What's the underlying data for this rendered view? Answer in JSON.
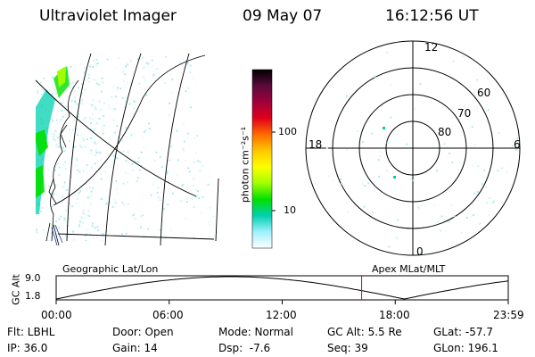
{
  "header": {
    "instrument": "Ultraviolet Imager",
    "date": "09 May 07",
    "time": "16:12:56 UT"
  },
  "colorbar": {
    "unit_label": "photon cm⁻²s⁻¹",
    "ticks": [
      "100",
      "10"
    ],
    "colors": [
      "#000000",
      "#5a0a3a",
      "#a0003c",
      "#e0001a",
      "#ff6a00",
      "#ffc800",
      "#ffff00",
      "#a0ff00",
      "#00e000",
      "#00d0b0",
      "#a0f0ff",
      "#ffffff"
    ]
  },
  "polar_plot": {
    "mlt_labels": {
      "top": "12",
      "left": "18",
      "right": "6",
      "bottom": "0"
    },
    "lat_labels": [
      "60",
      "70",
      "80"
    ]
  },
  "timeline": {
    "ylabel": "GC Alt",
    "y_ticks": [
      "9.0",
      "1.8"
    ],
    "left_title": "Geographic Lat/Lon",
    "right_title": "Apex MLat/MLT",
    "x_ticks": [
      "00:00",
      "06:00",
      "12:00",
      "18:00",
      "23:59"
    ],
    "current_time_fraction": 0.6757
  },
  "status": {
    "col1": [
      "Flt: LBHL",
      "IP: 36.0"
    ],
    "col2": [
      "Door: Open",
      "Gain: 14"
    ],
    "col3": [
      "Mode: Normal",
      "Dsp:  -7.6"
    ],
    "col4": [
      "GC Alt: 5.5 Re",
      "Seq: 39"
    ],
    "col5": [
      "GLat: -57.7",
      "GLon: 196.1"
    ]
  }
}
